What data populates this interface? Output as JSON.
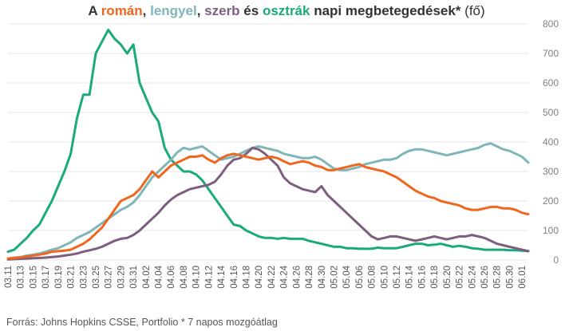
{
  "title": {
    "a": "A ",
    "roman": "román",
    "sep1": ", ",
    "lengyel": "lengyel",
    "sep2": ", ",
    "szerb": "szerb",
    "es": " és ",
    "osztrak": "osztrák",
    "rest": " napi megbetegedések*",
    "unit": " (fő)"
  },
  "footer": {
    "source": "Forrás: Johns Hopkins CSSE, Portfolio",
    "note": "* 7 napos mozgóátlag"
  },
  "chart_data": {
    "type": "line",
    "ylim": [
      0,
      800
    ],
    "yticks": [
      "0",
      "100",
      "200",
      "300",
      "400",
      "500",
      "600",
      "700",
      "800"
    ],
    "grid": true,
    "x": [
      "03.11",
      "03.12",
      "03.13",
      "03.14",
      "03.15",
      "03.16",
      "03.17",
      "03.18",
      "03.19",
      "03.20",
      "03.21",
      "03.22",
      "03.23",
      "03.24",
      "03.25",
      "03.26",
      "03.27",
      "03.28",
      "03.29",
      "03.30",
      "03.31",
      "04.01",
      "04.02",
      "04.03",
      "04.04",
      "04.05",
      "04.06",
      "04.07",
      "04.08",
      "04.09",
      "04.10",
      "04.11",
      "04.12",
      "04.13",
      "04.14",
      "04.15",
      "04.16",
      "04.17",
      "04.18",
      "04.19",
      "04.20",
      "04.21",
      "04.22",
      "04.23",
      "04.24",
      "04.25",
      "04.26",
      "04.27",
      "04.28",
      "04.29",
      "04.30",
      "05.01",
      "05.02",
      "05.03",
      "05.04",
      "05.05",
      "05.06",
      "05.07",
      "05.08",
      "05.09",
      "05.10",
      "05.11",
      "05.12",
      "05.13",
      "05.14",
      "05.15",
      "05.16",
      "05.17",
      "05.18",
      "05.19",
      "05.20",
      "05.21",
      "05.22",
      "05.23",
      "05.24",
      "05.25",
      "05.26",
      "05.27",
      "05.28",
      "05.29",
      "05.30",
      "05.31",
      "06.01",
      "06.02"
    ],
    "xtick_labels": [
      "03.11",
      "03.13",
      "03.15",
      "03.17",
      "03.19",
      "03.21",
      "03.23",
      "03.25",
      "03.27",
      "03.29",
      "03.31",
      "04.02",
      "04.04",
      "04.06",
      "04.08",
      "04.10",
      "04.12",
      "04.14",
      "04.16",
      "04.18",
      "04.20",
      "04.22",
      "04.24",
      "04.26",
      "04.28",
      "04.30",
      "05.02",
      "05.04",
      "05.06",
      "05.08",
      "05.10",
      "05.12",
      "05.14",
      "05.16",
      "05.18",
      "05.20",
      "05.22",
      "05.24",
      "05.26",
      "05.28",
      "05.30",
      "06.01"
    ],
    "series": [
      {
        "name": "osztrák",
        "color": "#1aaa7b",
        "values": [
          28,
          35,
          55,
          75,
          100,
          120,
          160,
          200,
          250,
          300,
          360,
          480,
          560,
          560,
          700,
          740,
          780,
          750,
          730,
          700,
          730,
          600,
          550,
          500,
          470,
          380,
          340,
          320,
          300,
          300,
          290,
          270,
          240,
          210,
          180,
          150,
          120,
          115,
          100,
          90,
          80,
          75,
          75,
          72,
          75,
          72,
          72,
          72,
          65,
          60,
          55,
          50,
          45,
          45,
          40,
          40,
          38,
          38,
          38,
          42,
          40,
          40,
          40,
          45,
          50,
          55,
          55,
          50,
          52,
          55,
          50,
          45,
          48,
          45,
          40,
          38,
          35,
          35,
          35,
          35,
          33,
          33,
          32,
          30
        ]
      },
      {
        "name": "lengyel",
        "color": "#7fb6b8",
        "values": [
          5,
          8,
          10,
          15,
          18,
          22,
          28,
          35,
          40,
          50,
          60,
          75,
          85,
          95,
          110,
          125,
          140,
          155,
          170,
          180,
          195,
          220,
          250,
          280,
          300,
          320,
          340,
          365,
          380,
          375,
          380,
          385,
          370,
          355,
          340,
          345,
          350,
          360,
          370,
          380,
          385,
          380,
          375,
          370,
          360,
          355,
          350,
          345,
          345,
          350,
          340,
          325,
          310,
          305,
          305,
          310,
          315,
          325,
          330,
          335,
          340,
          340,
          345,
          360,
          370,
          375,
          375,
          370,
          365,
          360,
          355,
          360,
          365,
          370,
          375,
          380,
          390,
          395,
          385,
          375,
          370,
          360,
          350,
          330
        ]
      },
      {
        "name": "szerb",
        "color": "#7d5d80",
        "values": [
          2,
          3,
          4,
          5,
          6,
          7,
          8,
          10,
          12,
          15,
          18,
          22,
          28,
          33,
          38,
          45,
          55,
          65,
          72,
          75,
          85,
          100,
          120,
          140,
          160,
          185,
          205,
          220,
          230,
          240,
          245,
          250,
          255,
          265,
          290,
          320,
          340,
          345,
          360,
          380,
          375,
          360,
          340,
          320,
          280,
          260,
          250,
          240,
          235,
          230,
          250,
          220,
          200,
          180,
          160,
          140,
          120,
          100,
          80,
          70,
          75,
          80,
          80,
          75,
          70,
          65,
          70,
          75,
          80,
          75,
          70,
          75,
          80,
          80,
          85,
          80,
          75,
          65,
          55,
          50,
          45,
          40,
          35,
          30
        ]
      },
      {
        "name": "román",
        "color": "#f0661e",
        "values": [
          5,
          7,
          9,
          12,
          15,
          18,
          22,
          28,
          30,
          32,
          35,
          45,
          55,
          70,
          90,
          110,
          140,
          170,
          200,
          210,
          220,
          240,
          270,
          300,
          280,
          300,
          320,
          330,
          340,
          350,
          350,
          355,
          340,
          330,
          345,
          355,
          360,
          355,
          350,
          345,
          340,
          345,
          350,
          345,
          335,
          325,
          330,
          335,
          330,
          320,
          315,
          305,
          305,
          310,
          315,
          320,
          325,
          315,
          310,
          305,
          300,
          290,
          280,
          265,
          250,
          235,
          225,
          215,
          210,
          200,
          195,
          190,
          185,
          175,
          170,
          170,
          175,
          180,
          180,
          175,
          175,
          170,
          160,
          155
        ]
      }
    ]
  }
}
